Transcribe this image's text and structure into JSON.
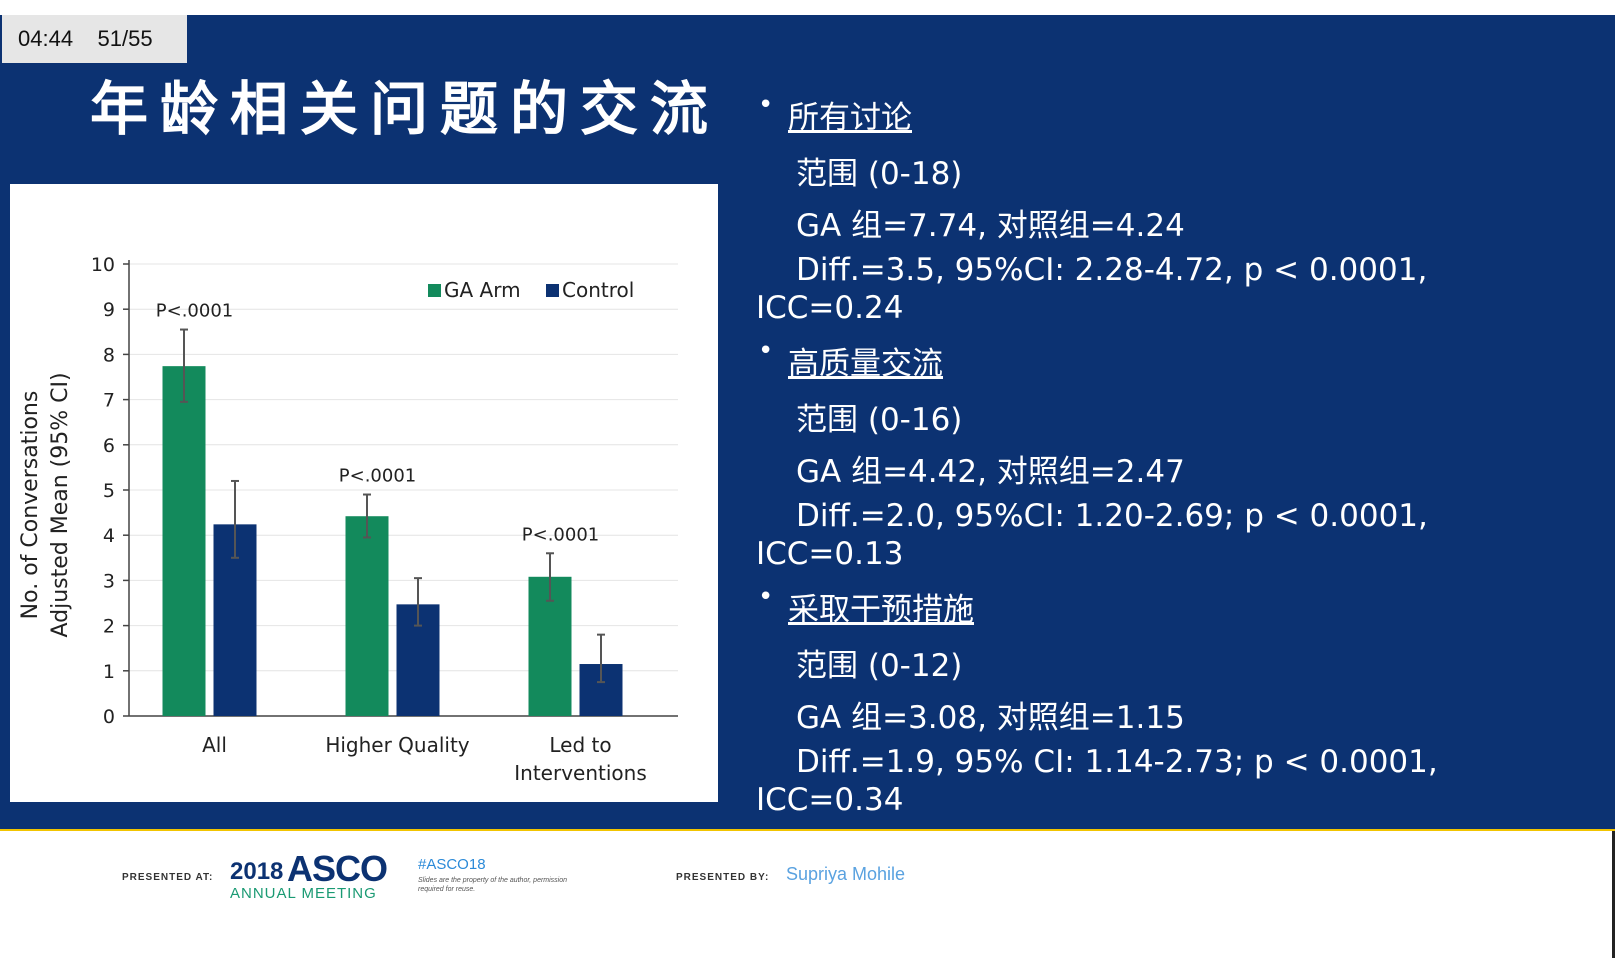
{
  "player": {
    "time": "04:44",
    "slide_counter": "51/55"
  },
  "slide": {
    "title": "年龄相关问题的交流",
    "sections": [
      {
        "heading": "所有讨论",
        "range": "范围 (0-18)",
        "groups": "GA 组=7.74, 对照组=4.24",
        "diff": "Diff.=3.5, 95%CI: 2.28-4.72, p < 0.0001,",
        "icc": "ICC=0.24"
      },
      {
        "heading": "高质量交流",
        "range": "范围 (0-16)",
        "groups": "GA 组=4.42, 对照组=2.47",
        "diff": "Diff.=2.0, 95%CI: 1.20-2.69; p < 0.0001,",
        "icc": "ICC=0.13"
      },
      {
        "heading": "采取干预措施",
        "range": "范围 (0-12)",
        "groups": "GA 组=3.08, 对照组=1.15",
        "diff": "Diff.=1.9, 95% CI: 1.14-2.73; p < 0.0001,",
        "icc": "ICC=0.34"
      }
    ],
    "bullet_symbol": "•"
  },
  "chart_data": {
    "type": "bar",
    "ylabel_line1": "No. of Conversations",
    "ylabel_line2": "Adjusted Mean (95% CI)",
    "ylim": [
      0,
      10
    ],
    "yticks": [
      "0",
      "1",
      "2",
      "3",
      "4",
      "5",
      "6",
      "7",
      "8",
      "9",
      "10"
    ],
    "categories": [
      "All",
      "Higher Quality",
      "Led to Interventions"
    ],
    "category_lines": [
      [
        "All"
      ],
      [
        "Higher Quality"
      ],
      [
        "Led to",
        "Interventions"
      ]
    ],
    "series": [
      {
        "name": "GA Arm",
        "color": "#138a5c",
        "values": [
          7.74,
          4.42,
          3.08
        ],
        "ci_low": [
          6.95,
          3.95,
          2.55
        ],
        "ci_high": [
          8.55,
          4.9,
          3.6
        ]
      },
      {
        "name": "Control",
        "color": "#0c3272",
        "values": [
          4.24,
          2.47,
          1.15
        ],
        "ci_low": [
          3.5,
          2.0,
          0.75
        ],
        "ci_high": [
          5.2,
          3.05,
          1.8
        ]
      }
    ],
    "annotations": [
      "P<.0001",
      "P<.0001",
      "P<.0001"
    ],
    "grid": true,
    "legend_position": "top-right"
  },
  "footer": {
    "presented_at_label": "PRESENTED AT:",
    "meeting_year": "2018",
    "meeting_name": "ASCO",
    "meeting_sub": "ANNUAL MEETING",
    "hashtag": "#ASCO18",
    "disclaimer": "Slides are the property of the author, permission required for reuse.",
    "presented_by_label": "PRESENTED BY:",
    "presenter": "Supriya Mohile"
  }
}
